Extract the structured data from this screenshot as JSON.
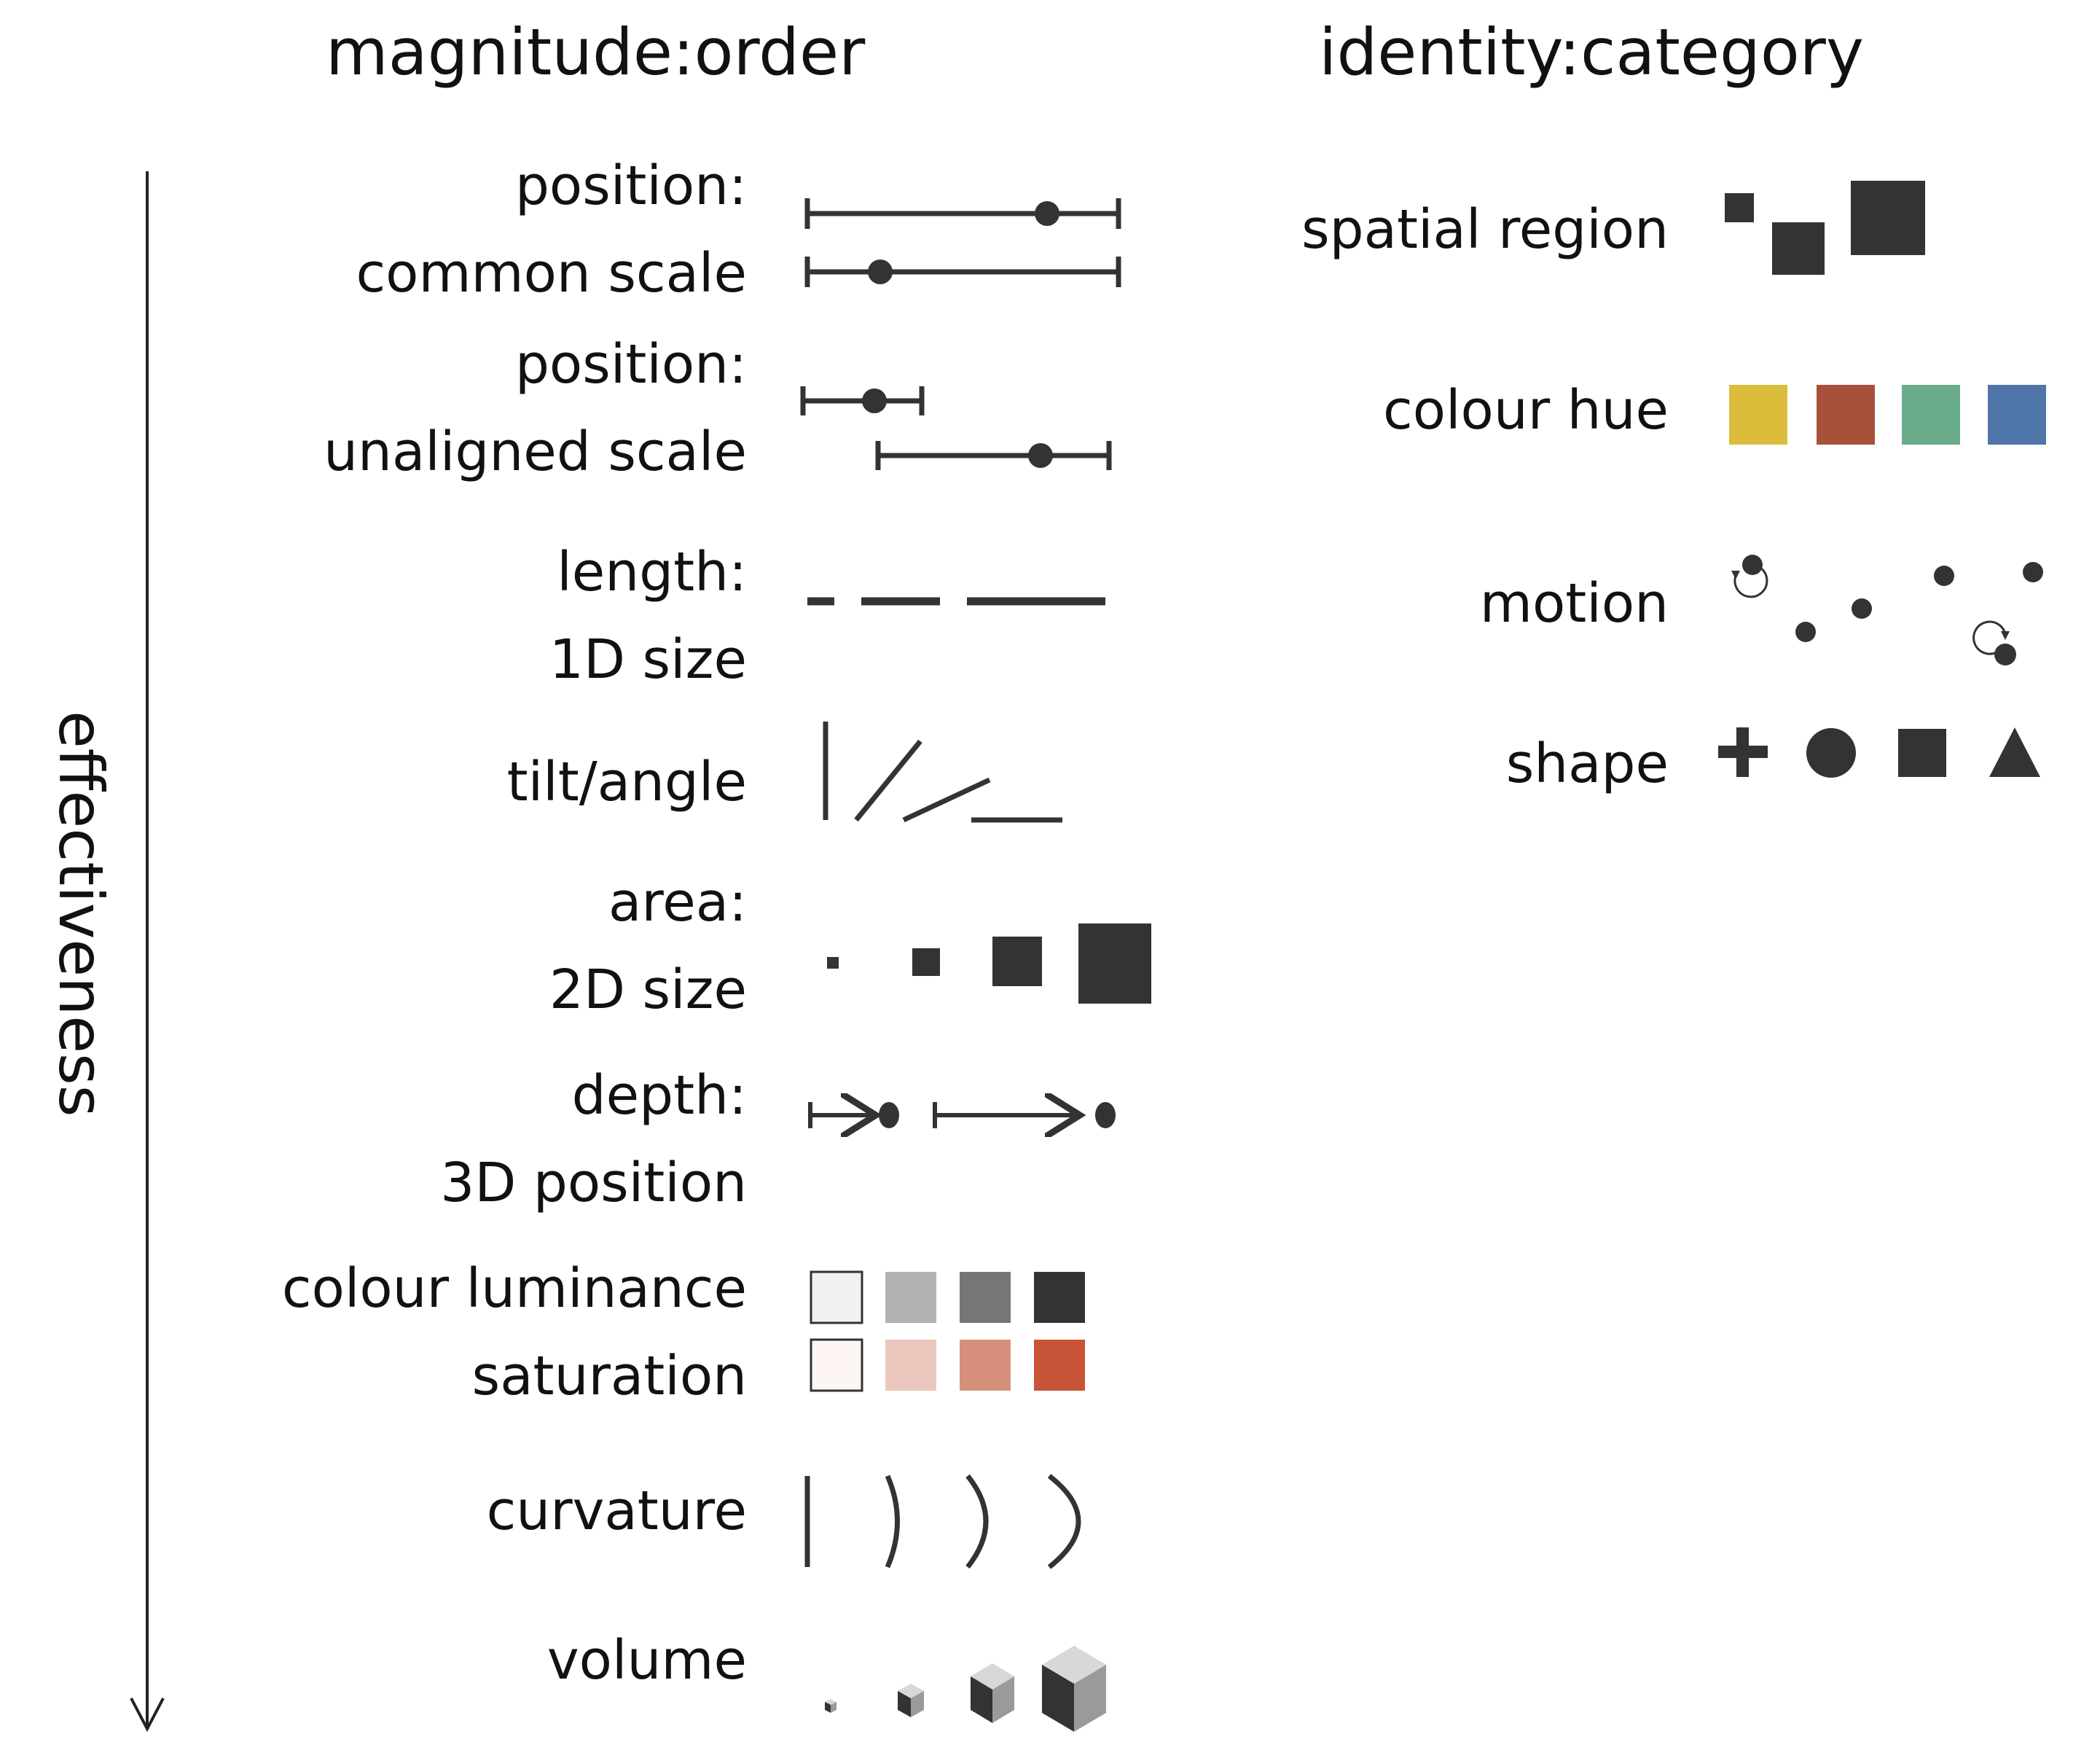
{
  "titles": {
    "magnitude": "magnitude:order",
    "identity": "identity:category"
  },
  "axis": {
    "label": "effectiveness",
    "direction": "down-arrow-icon"
  },
  "magnitude_channels": [
    {
      "line1": "position:",
      "line2": "common scale"
    },
    {
      "line1": "position:",
      "line2": "unaligned scale"
    },
    {
      "line1": "length:",
      "line2": "1D size"
    },
    {
      "line1": "tilt/angle",
      "line2": ""
    },
    {
      "line1": "area:",
      "line2": "2D size"
    },
    {
      "line1": "depth:",
      "line2": "3D position"
    },
    {
      "line1": "colour luminance",
      "line2": "saturation"
    },
    {
      "line1": "curvature",
      "line2": ""
    },
    {
      "line1": "volume",
      "line2": ""
    }
  ],
  "identity_channels": [
    {
      "label": "spatial region"
    },
    {
      "label": "colour hue"
    },
    {
      "label": "motion"
    },
    {
      "label": "shape"
    }
  ],
  "colors": {
    "ink": "#333333",
    "hue": [
      "#dbbd3b",
      "#a8503a",
      "#69ac8c",
      "#5075a8"
    ],
    "luminance": [
      "#f1f1f1",
      "#b1b1b1",
      "#767676",
      "#333333"
    ],
    "saturation": [
      "#fdf6f3",
      "#ebc7bd",
      "#d68f7a",
      "#c85438"
    ],
    "cube_top": "#d8d8d8",
    "cube_left": "#333333",
    "cube_right": "#9a9a9a"
  }
}
